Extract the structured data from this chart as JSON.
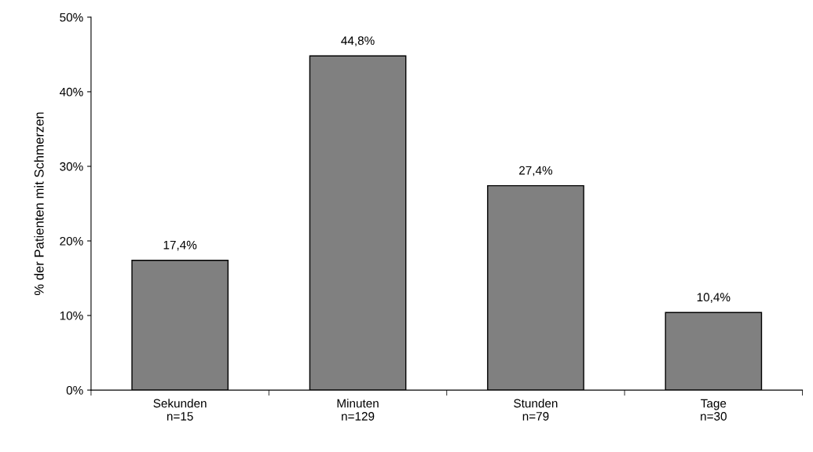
{
  "chart_data": {
    "type": "bar",
    "ylabel": "% der Patienten mit Schmerzen",
    "categories": [
      "Sekunden\nn=15",
      "Minuten\nn=129",
      "Stunden\nn=79",
      "Tage\nn=30"
    ],
    "values": [
      17.4,
      44.8,
      27.4,
      10.4
    ],
    "value_labels": [
      "17,4%",
      "44,8%",
      "27,4%",
      "10,4%"
    ],
    "color": "#808080",
    "ylim": [
      0,
      50
    ],
    "yticks": [
      {
        "value": 0,
        "label": "0%"
      },
      {
        "value": 10,
        "label": "10%"
      },
      {
        "value": 20,
        "label": "20%"
      },
      {
        "value": 30,
        "label": "30%"
      },
      {
        "value": 40,
        "label": "40%"
      },
      {
        "value": 50,
        "label": "50%"
      }
    ],
    "grid": false,
    "legend": false
  }
}
